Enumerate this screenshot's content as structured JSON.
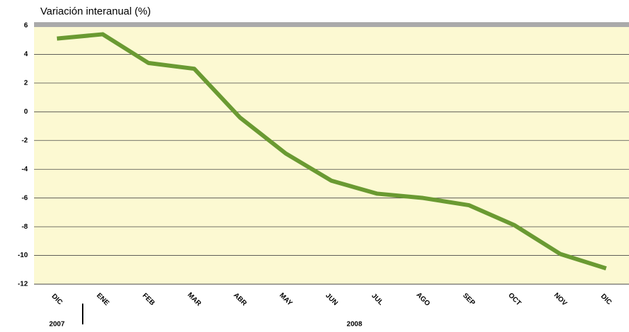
{
  "chart_data": {
    "type": "line",
    "y_axis_label": "Variación interanual (%)",
    "categories": [
      "DIC",
      "ENE",
      "FEB",
      "MAR",
      "ABR",
      "MAY",
      "JUN",
      "JUL",
      "AGO",
      "SEP",
      "OCT",
      "NOV",
      "DIC"
    ],
    "groups": [
      "2007",
      "2008"
    ],
    "series": [
      {
        "color": "#6a9a32",
        "values": [
          5.1,
          5.4,
          3.4,
          3.0,
          -0.4,
          -2.9,
          -4.8,
          -5.7,
          -6.0,
          -6.5,
          -7.9,
          -9.9,
          -10.9
        ]
      }
    ],
    "ylim": [
      -12,
      6
    ],
    "yticks": [
      -12,
      -10,
      -8,
      -6,
      -4,
      -2,
      0,
      2,
      4,
      6
    ],
    "grid": true
  }
}
